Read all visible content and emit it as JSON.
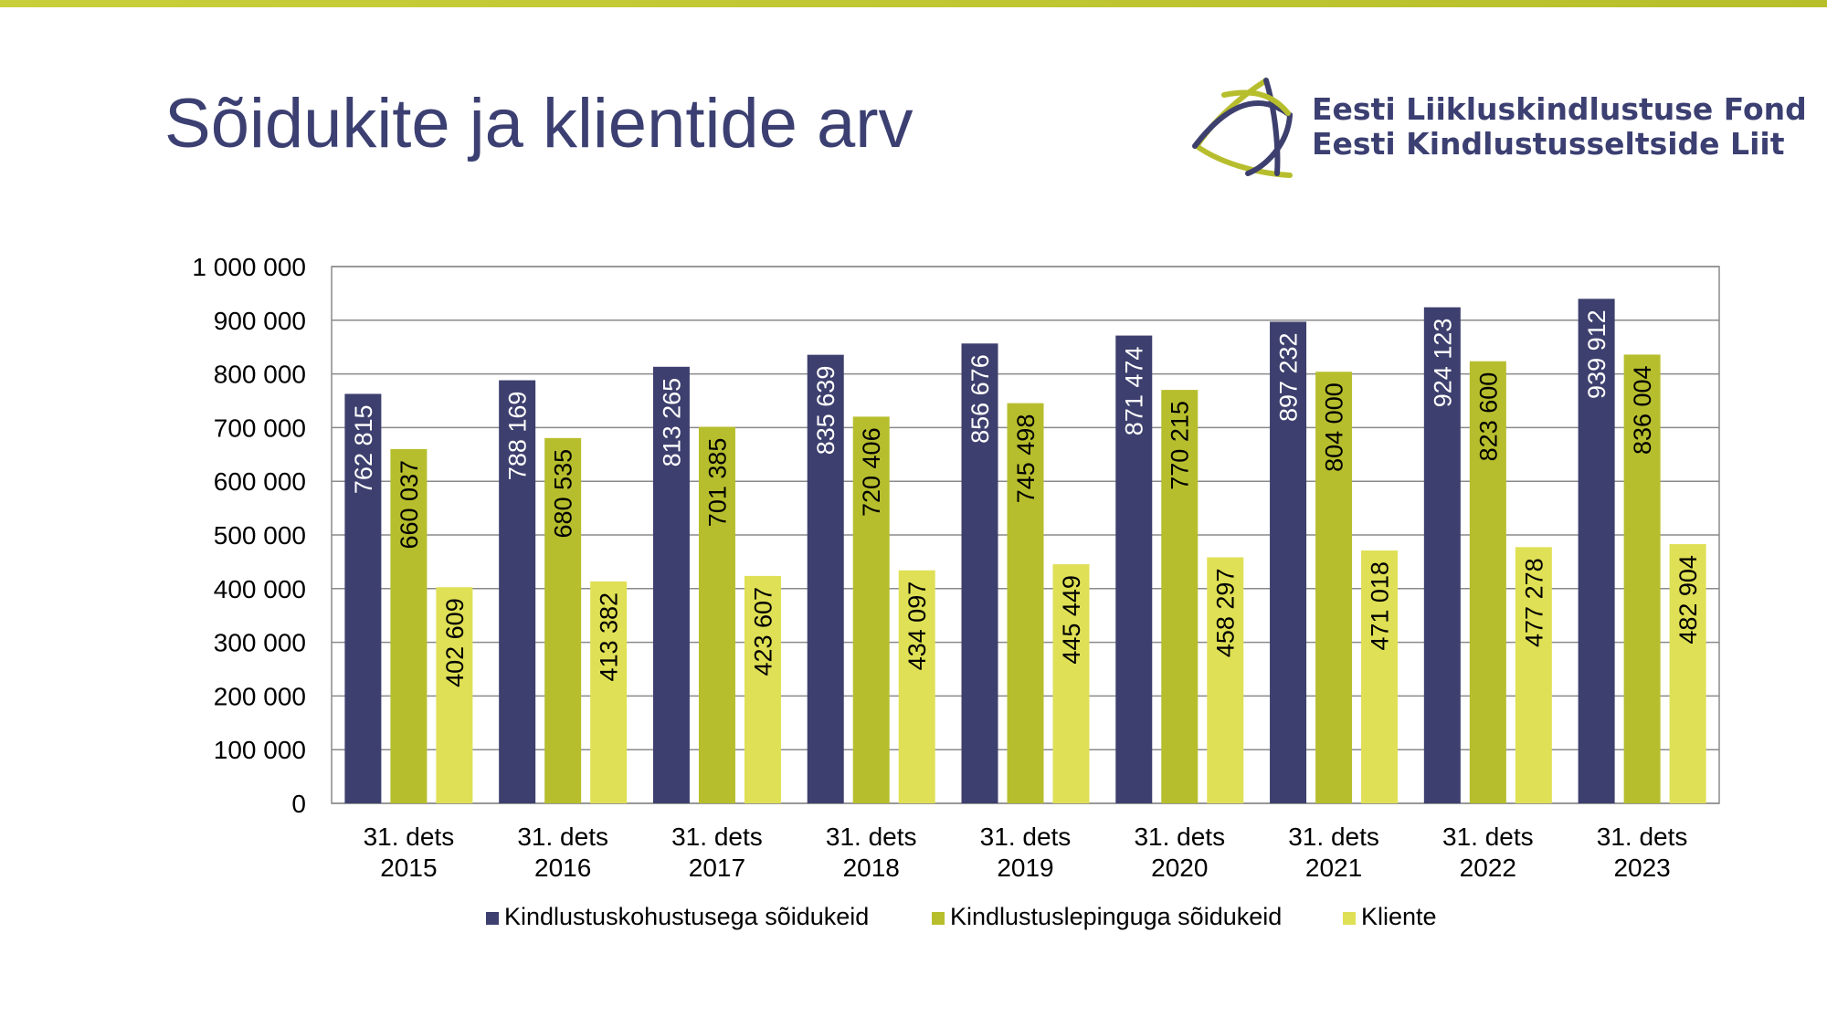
{
  "page": {
    "title": "Sõidukite ja klientide arv"
  },
  "logo": {
    "line1": "Eesti Liikluskindlustuse Fond",
    "line2": "Eesti Kindlustusseltside Liit"
  },
  "colors": {
    "navy": "#3d3f6e",
    "olive": "#b7be2d",
    "yellow": "#dfe055",
    "title": "#3b3f71",
    "accent_bar": "#c9cf3a"
  },
  "chart_data": {
    "type": "bar",
    "categories": [
      [
        "31. dets",
        "2015"
      ],
      [
        "31. dets",
        "2016"
      ],
      [
        "31. dets",
        "2017"
      ],
      [
        "31. dets",
        "2018"
      ],
      [
        "31. dets",
        "2019"
      ],
      [
        "31. dets",
        "2020"
      ],
      [
        "31. dets",
        "2021"
      ],
      [
        "31. dets",
        "2022"
      ],
      [
        "31. dets",
        "2023"
      ]
    ],
    "series": [
      {
        "name": "Kindlustuskohustusega sõidukeid",
        "color": "#3d3f6e",
        "label_color": "#ffffff",
        "values": [
          762815,
          788169,
          813265,
          835639,
          856676,
          871474,
          897232,
          924123,
          939912
        ],
        "labels": [
          "762 815",
          "788 169",
          "813 265",
          "835 639",
          "856 676",
          "871 474",
          "897 232",
          "924 123",
          "939 912"
        ]
      },
      {
        "name": "Kindlustuslepinguga sõidukeid",
        "color": "#b7be2d",
        "label_color": "#000000",
        "values": [
          660037,
          680535,
          701385,
          720406,
          745498,
          770215,
          804000,
          823600,
          836004
        ],
        "labels": [
          "660 037",
          "680 535",
          "701 385",
          "720 406",
          "745 498",
          "770 215",
          "804 000",
          "823 600",
          "836 004"
        ]
      },
      {
        "name": "Kliente",
        "color": "#dfe055",
        "label_color": "#000000",
        "values": [
          402609,
          413382,
          423607,
          434097,
          445449,
          458297,
          471018,
          477278,
          482904
        ],
        "labels": [
          "402 609",
          "413 382",
          "423 607",
          "434 097",
          "445 449",
          "458 297",
          "471 018",
          "477 278",
          "482 904"
        ]
      }
    ],
    "ylim": [
      0,
      1000000
    ],
    "yticks": [
      0,
      100000,
      200000,
      300000,
      400000,
      500000,
      600000,
      700000,
      800000,
      900000,
      1000000
    ],
    "ytick_labels": [
      "0",
      "100 000",
      "200 000",
      "300 000",
      "400 000",
      "500 000",
      "600 000",
      "700 000",
      "800 000",
      "900 000",
      "1 000 000"
    ],
    "grid": true,
    "legend": "bottom"
  }
}
